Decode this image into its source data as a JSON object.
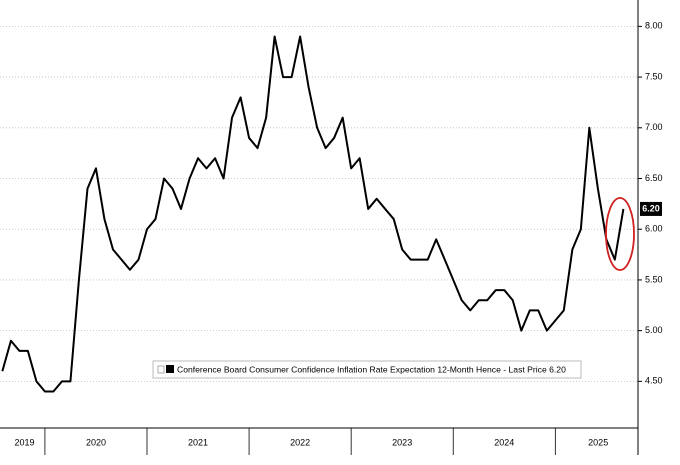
{
  "chart_data": {
    "type": "line",
    "x": [
      2019.583,
      2019.667,
      2019.75,
      2019.833,
      2019.917,
      2020.0,
      2020.083,
      2020.167,
      2020.25,
      2020.333,
      2020.417,
      2020.5,
      2020.583,
      2020.667,
      2020.75,
      2020.833,
      2020.917,
      2021.0,
      2021.083,
      2021.167,
      2021.25,
      2021.333,
      2021.417,
      2021.5,
      2021.583,
      2021.667,
      2021.75,
      2021.833,
      2021.917,
      2022.0,
      2022.083,
      2022.167,
      2022.25,
      2022.333,
      2022.417,
      2022.5,
      2022.583,
      2022.667,
      2022.75,
      2022.833,
      2022.917,
      2023.0,
      2023.083,
      2023.167,
      2023.25,
      2023.333,
      2023.417,
      2023.5,
      2023.583,
      2023.667,
      2023.75,
      2023.833,
      2023.917,
      2024.0,
      2024.083,
      2024.167,
      2024.25,
      2024.333,
      2024.417,
      2024.5,
      2024.583,
      2024.667,
      2024.75,
      2024.833,
      2024.917,
      2025.0,
      2025.083,
      2025.167,
      2025.25,
      2025.333,
      2025.417,
      2025.5,
      2025.583,
      2025.667
    ],
    "series": [
      {
        "name": "Conference Board Consumer Confidence Inflation Rate Expectation 12-Month Hence - Last Price 6.20",
        "color": "#000000",
        "values": [
          4.6,
          4.9,
          4.8,
          4.8,
          4.5,
          4.4,
          4.4,
          4.5,
          4.5,
          5.5,
          6.4,
          6.6,
          6.1,
          5.8,
          5.7,
          5.6,
          5.7,
          6.0,
          6.1,
          6.5,
          6.4,
          6.2,
          6.5,
          6.7,
          6.6,
          6.7,
          6.5,
          7.1,
          7.3,
          6.9,
          6.8,
          7.1,
          7.9,
          7.5,
          7.5,
          7.9,
          7.4,
          7.0,
          6.8,
          6.9,
          7.1,
          6.6,
          6.7,
          6.2,
          6.3,
          6.2,
          6.1,
          5.8,
          5.7,
          5.7,
          5.7,
          5.9,
          5.7,
          5.5,
          5.3,
          5.2,
          5.3,
          5.3,
          5.4,
          5.4,
          5.3,
          5.0,
          5.2,
          5.2,
          5.0,
          5.1,
          5.2,
          5.8,
          6.0,
          7.0,
          6.4,
          5.9,
          5.7,
          6.2
        ]
      }
    ],
    "last_value_label": "6.20",
    "xlim": [
      2019.56,
      2025.81
    ],
    "xticks": [
      {
        "value": 2019.8,
        "label": "2019"
      },
      {
        "value": 2020.5,
        "label": "2020"
      },
      {
        "value": 2021.5,
        "label": "2021"
      },
      {
        "value": 2022.5,
        "label": "2022"
      },
      {
        "value": 2023.5,
        "label": "2023"
      },
      {
        "value": 2024.5,
        "label": "2024"
      },
      {
        "value": 2025.42,
        "label": "2025"
      }
    ],
    "xminorticks": [
      2020,
      2021,
      2022,
      2023,
      2024,
      2025
    ],
    "ylim": [
      4.04,
      8.26
    ],
    "yticks": [
      {
        "value": 4.5,
        "label": "4.50"
      },
      {
        "value": 5,
        "label": "5.00"
      },
      {
        "value": 5.5,
        "label": "5.50"
      },
      {
        "value": 6,
        "label": "6.00"
      },
      {
        "value": 6.5,
        "label": "6.50"
      },
      {
        "value": 7,
        "label": "7.00"
      },
      {
        "value": 7.5,
        "label": "7.50"
      },
      {
        "value": 8,
        "label": "8.00"
      }
    ],
    "grid": true
  }
}
